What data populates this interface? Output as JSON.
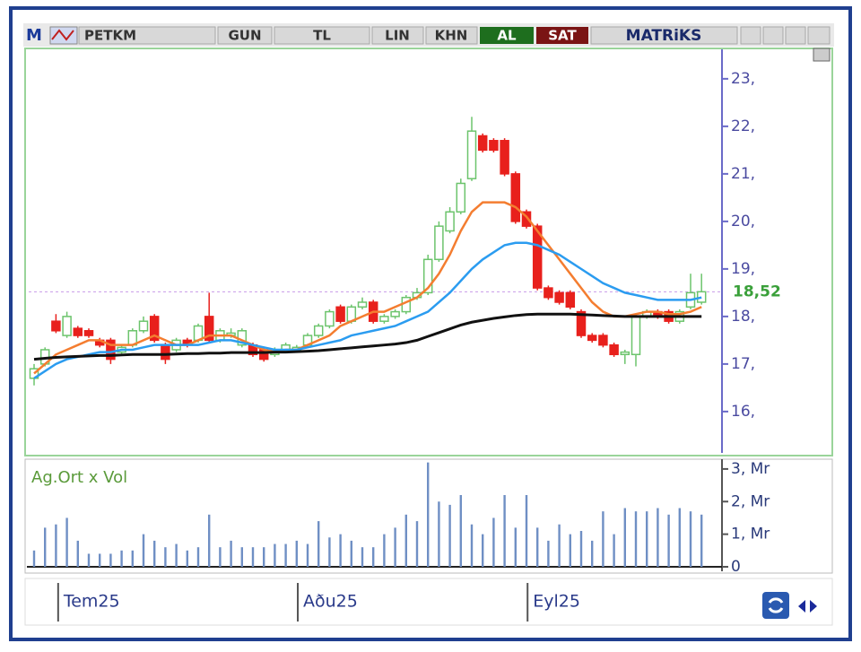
{
  "toolbar": {
    "logo": "M",
    "symbol": "PETKM",
    "period": "GUN",
    "currency": "TL",
    "scale": "LIN",
    "mode": "KHN",
    "buy": "AL",
    "sell": "SAT",
    "brand": "MATRiKS"
  },
  "chart_data": [
    {
      "type": "candlestick",
      "open": [
        16.7,
        17.0,
        17.9,
        17.6,
        17.75,
        17.7,
        17.5,
        17.5,
        17.25,
        17.4,
        17.7,
        18.0,
        17.4,
        17.3,
        17.5,
        17.5,
        18.0,
        17.5,
        17.6,
        17.4,
        17.4,
        17.3,
        17.2,
        17.3,
        17.3,
        17.4,
        17.6,
        17.8,
        18.2,
        17.9,
        18.2,
        18.3,
        17.9,
        18.0,
        18.1,
        18.4,
        18.5,
        19.2,
        19.8,
        20.2,
        20.9,
        21.8,
        21.7,
        21.7,
        21.0,
        20.2,
        19.9,
        18.6,
        18.5,
        18.5,
        18.1,
        17.6,
        17.6,
        17.4,
        17.2,
        17.2,
        18.0,
        18.1,
        18.1,
        17.9,
        18.2,
        18.3
      ],
      "high": [
        17.0,
        17.35,
        18.05,
        18.1,
        17.8,
        17.75,
        17.55,
        17.55,
        17.4,
        17.75,
        18.0,
        18.05,
        17.45,
        17.55,
        17.55,
        17.85,
        18.5,
        17.75,
        17.75,
        17.75,
        17.45,
        17.35,
        17.35,
        17.45,
        17.4,
        17.65,
        17.85,
        18.15,
        18.25,
        18.25,
        18.4,
        18.35,
        18.05,
        18.15,
        18.45,
        18.6,
        19.3,
        20.0,
        20.3,
        20.9,
        22.2,
        21.85,
        21.75,
        21.75,
        21.05,
        20.25,
        19.95,
        18.65,
        18.55,
        18.55,
        18.15,
        17.65,
        17.65,
        17.45,
        17.3,
        18.05,
        18.15,
        18.15,
        18.15,
        18.15,
        18.9,
        18.9
      ],
      "low": [
        16.55,
        16.95,
        17.65,
        17.55,
        17.55,
        17.55,
        17.35,
        17.0,
        17.2,
        17.35,
        17.65,
        17.45,
        17.0,
        17.25,
        17.35,
        17.45,
        17.45,
        17.45,
        17.55,
        17.35,
        17.15,
        17.05,
        17.15,
        17.25,
        17.25,
        17.35,
        17.55,
        17.75,
        17.85,
        17.85,
        18.15,
        17.85,
        17.85,
        17.95,
        18.05,
        18.35,
        18.45,
        19.15,
        19.75,
        20.15,
        20.85,
        21.45,
        21.45,
        20.95,
        19.95,
        19.85,
        18.55,
        18.35,
        18.25,
        18.15,
        17.55,
        17.45,
        17.35,
        17.15,
        17.0,
        16.95,
        17.95,
        17.95,
        17.85,
        17.85,
        18.15,
        18.25
      ],
      "close": [
        16.9,
        17.3,
        17.7,
        18.0,
        17.6,
        17.6,
        17.4,
        17.1,
        17.35,
        17.7,
        17.9,
        17.5,
        17.1,
        17.5,
        17.4,
        17.8,
        17.5,
        17.7,
        17.65,
        17.7,
        17.2,
        17.1,
        17.3,
        17.4,
        17.35,
        17.6,
        17.8,
        18.1,
        17.9,
        18.2,
        18.3,
        17.9,
        18.0,
        18.1,
        18.4,
        18.5,
        19.2,
        19.9,
        20.2,
        20.8,
        21.9,
        21.5,
        21.5,
        21.0,
        20.0,
        19.9,
        18.6,
        18.4,
        18.3,
        18.2,
        17.6,
        17.5,
        17.4,
        17.2,
        17.25,
        18.0,
        18.1,
        18.0,
        17.9,
        18.1,
        18.5,
        18.52
      ],
      "up_color": "#6cc46c",
      "down_color": "#e8201c",
      "series": [
        {
          "color": "#f47d30",
          "values": [
            16.8,
            17.0,
            17.2,
            17.3,
            17.4,
            17.5,
            17.5,
            17.4,
            17.4,
            17.4,
            17.5,
            17.6,
            17.5,
            17.4,
            17.4,
            17.5,
            17.6,
            17.6,
            17.6,
            17.5,
            17.4,
            17.3,
            17.25,
            17.3,
            17.3,
            17.4,
            17.5,
            17.6,
            17.8,
            17.9,
            18.0,
            18.1,
            18.1,
            18.2,
            18.3,
            18.4,
            18.6,
            18.9,
            19.3,
            19.8,
            20.2,
            20.4,
            20.4,
            20.4,
            20.3,
            20.1,
            19.8,
            19.5,
            19.2,
            18.9,
            18.6,
            18.3,
            18.1,
            18.0,
            18.0,
            18.05,
            18.1,
            18.1,
            18.05,
            18.05,
            18.1,
            18.2
          ]
        },
        {
          "color": "#2b9cf0",
          "values": [
            16.7,
            16.85,
            17.0,
            17.1,
            17.15,
            17.2,
            17.25,
            17.25,
            17.3,
            17.3,
            17.35,
            17.4,
            17.4,
            17.4,
            17.4,
            17.4,
            17.45,
            17.5,
            17.5,
            17.45,
            17.4,
            17.35,
            17.3,
            17.3,
            17.3,
            17.35,
            17.4,
            17.45,
            17.5,
            17.6,
            17.65,
            17.7,
            17.75,
            17.8,
            17.9,
            18.0,
            18.1,
            18.3,
            18.5,
            18.75,
            19.0,
            19.2,
            19.35,
            19.5,
            19.55,
            19.55,
            19.5,
            19.4,
            19.3,
            19.15,
            19.0,
            18.85,
            18.7,
            18.6,
            18.5,
            18.45,
            18.4,
            18.35,
            18.35,
            18.35,
            18.35,
            18.4
          ]
        },
        {
          "color": "#111111",
          "values": [
            17.1,
            17.12,
            17.14,
            17.15,
            17.16,
            17.17,
            17.18,
            17.18,
            17.19,
            17.2,
            17.2,
            17.2,
            17.2,
            17.21,
            17.22,
            17.22,
            17.23,
            17.23,
            17.24,
            17.24,
            17.24,
            17.24,
            17.25,
            17.25,
            17.26,
            17.27,
            17.28,
            17.3,
            17.32,
            17.34,
            17.36,
            17.38,
            17.4,
            17.42,
            17.45,
            17.5,
            17.58,
            17.66,
            17.74,
            17.82,
            17.88,
            17.92,
            17.96,
            17.99,
            18.02,
            18.04,
            18.05,
            18.05,
            18.05,
            18.05,
            18.04,
            18.03,
            18.02,
            18.01,
            18.0,
            18.0,
            18.0,
            18.0,
            18.0,
            18.0,
            18.0,
            18.0
          ]
        }
      ],
      "ylim": [
        15.13,
        23.62
      ],
      "yticks": [
        {
          "value": 16,
          "label": "16,"
        },
        {
          "value": 17,
          "label": "17,"
        },
        {
          "value": 18,
          "label": "18,"
        },
        {
          "value": 19,
          "label": "19,"
        },
        {
          "value": 20,
          "label": "20,"
        },
        {
          "value": 21,
          "label": "21,"
        },
        {
          "value": 22,
          "label": "22,"
        },
        {
          "value": 23,
          "label": "23,"
        }
      ],
      "last_price": {
        "value": 18.52,
        "label": "18,52"
      },
      "xticks": [
        {
          "value": 2.2,
          "label": "Tem25"
        },
        {
          "value": 24.1,
          "label": "Aðu25"
        },
        {
          "value": 45.1,
          "label": "Eyl25"
        }
      ]
    },
    {
      "type": "bar",
      "title": "Ag.Ort x Vol",
      "color": "#6f8fc4",
      "values": [
        0.5,
        1.2,
        1.3,
        1.5,
        0.8,
        0.4,
        0.4,
        0.4,
        0.5,
        0.5,
        1.0,
        0.8,
        0.6,
        0.7,
        0.5,
        0.6,
        1.6,
        0.6,
        0.8,
        0.6,
        0.6,
        0.6,
        0.7,
        0.7,
        0.8,
        0.7,
        1.4,
        0.9,
        1.0,
        0.8,
        0.6,
        0.6,
        1.0,
        1.2,
        1.6,
        1.4,
        3.2,
        2.0,
        1.9,
        2.2,
        1.3,
        1.0,
        1.5,
        2.2,
        1.2,
        2.2,
        1.2,
        0.8,
        1.3,
        1.0,
        1.1,
        0.8,
        1.7,
        1.0,
        1.8,
        1.7,
        1.7,
        1.8,
        1.6,
        1.8,
        1.7,
        1.6
      ],
      "ylim": [
        0,
        3.3
      ],
      "yticks": [
        0,
        {
          "value": 1,
          "label": "1, Mr"
        },
        {
          "value": 2,
          "label": "2, Mr"
        },
        {
          "value": 3,
          "label": "3, Mr"
        }
      ]
    }
  ]
}
